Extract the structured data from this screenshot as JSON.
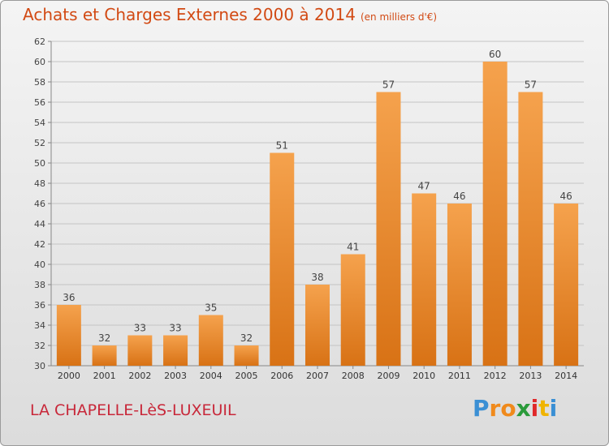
{
  "header": {
    "title": "Achats et Charges Externes 2000 à 2014",
    "unit": "(en milliers d'€)"
  },
  "footer": {
    "commune": "LA CHAPELLE-LèS-LUXEUIL",
    "logo_letters": [
      "P",
      "r",
      "o",
      "x",
      "i",
      "t",
      "i"
    ]
  },
  "colors": {
    "bar_top": "#f5a24d",
    "bar_bottom": "#d87215",
    "title": "#d24a14",
    "commune": "#c8283a",
    "logo": [
      "#3a8fd4",
      "#f08a1c",
      "#f08a1c",
      "#2a9a3a",
      "#e0282a",
      "#f0b400",
      "#3a8fd4"
    ]
  },
  "chart_data": {
    "type": "bar",
    "categories": [
      "2000",
      "2001",
      "2002",
      "2003",
      "2004",
      "2005",
      "2006",
      "2007",
      "2008",
      "2009",
      "2010",
      "2011",
      "2012",
      "2013",
      "2014"
    ],
    "values": [
      36,
      32,
      33,
      33,
      35,
      32,
      51,
      38,
      41,
      57,
      47,
      46,
      60,
      57,
      46
    ],
    "ylim": [
      30,
      62
    ],
    "yticks": [
      30,
      32,
      34,
      36,
      38,
      40,
      42,
      44,
      46,
      48,
      50,
      52,
      54,
      56,
      58,
      60,
      62
    ],
    "grid": true
  }
}
